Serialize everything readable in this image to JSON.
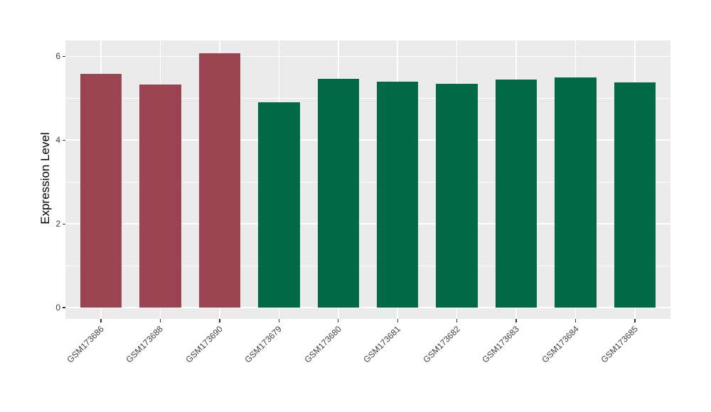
{
  "chart_data": {
    "type": "bar",
    "title": "",
    "xlabel": "",
    "ylabel": "Expression Level",
    "categories": [
      "GSM173686",
      "GSM173688",
      "GSM173690",
      "GSM173679",
      "GSM173680",
      "GSM173681",
      "GSM173682",
      "GSM173683",
      "GSM173684",
      "GSM173685"
    ],
    "values": [
      5.58,
      5.33,
      6.07,
      4.9,
      5.46,
      5.39,
      5.35,
      5.45,
      5.5,
      5.38
    ],
    "bar_colors": [
      "#9B4451",
      "#9B4451",
      "#9B4451",
      "#026947",
      "#026947",
      "#026947",
      "#026947",
      "#026947",
      "#026947",
      "#026947"
    ],
    "yticks": [
      0,
      2,
      4,
      6
    ],
    "yticks_minor": [
      1,
      3,
      5
    ],
    "ylim": [
      -0.27,
      6.38
    ],
    "bar_width_fraction": 0.7,
    "grid": true,
    "legend": "none",
    "panel_bg": "#EBEBEB",
    "grid_color": "#FFFFFF",
    "tick_color": "#333333",
    "axis_text_color": "#404040",
    "axis_title_color": "#000000",
    "page_bg": "#FFFFFF"
  }
}
